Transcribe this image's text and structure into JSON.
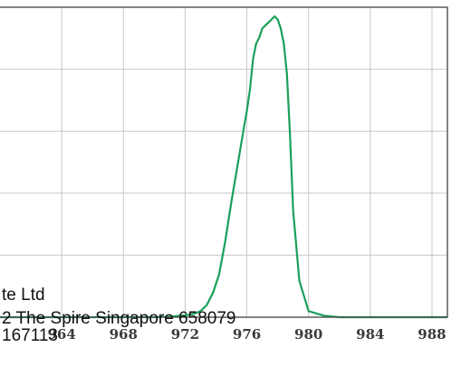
{
  "chart_data": {
    "type": "line",
    "title": "",
    "xlabel": "",
    "ylabel": "",
    "xlim": [
      960,
      989
    ],
    "ylim": [
      0,
      1.02
    ],
    "grid": true,
    "x_ticks": [
      "964",
      "968",
      "972",
      "976",
      "980",
      "984",
      "988"
    ],
    "series": [
      {
        "color": "#1aa05a",
        "x": [
          960.0,
          962.0,
          964.0,
          966.0,
          968.0,
          970.0,
          971.0,
          972.0,
          972.6,
          973.0,
          973.4,
          973.8,
          974.2,
          974.6,
          975.0,
          975.4,
          975.8,
          976.0,
          976.2,
          976.4,
          976.6,
          976.8,
          977.0,
          977.2,
          977.4,
          977.6,
          977.8,
          978.0,
          978.2,
          978.4,
          978.6,
          978.8,
          979.0,
          979.4,
          980.0,
          981.0,
          982.0,
          984.0,
          986.0,
          988.0,
          989.0
        ],
        "y": [
          0.0,
          0.0,
          0.0,
          0.0,
          0.0,
          0.0,
          0.002,
          0.006,
          0.012,
          0.02,
          0.04,
          0.08,
          0.14,
          0.25,
          0.38,
          0.5,
          0.62,
          0.68,
          0.75,
          0.85,
          0.9,
          0.92,
          0.95,
          0.96,
          0.97,
          0.98,
          0.99,
          0.98,
          0.95,
          0.9,
          0.8,
          0.6,
          0.35,
          0.12,
          0.02,
          0.005,
          0.0,
          0.0,
          0.0,
          0.0,
          0.0
        ]
      }
    ]
  },
  "overlay": {
    "line1": "te Ltd",
    "line2": "2 The Spire Singapore 658079",
    "line3": "167113"
  },
  "colors": {
    "grid": "#c8c8c8",
    "frame": "#505050",
    "line": "#1aa05a"
  }
}
